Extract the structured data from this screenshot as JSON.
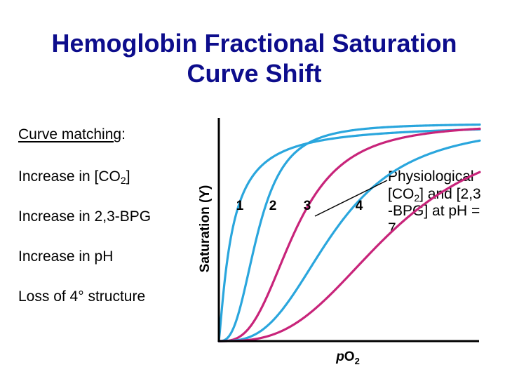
{
  "slide": {
    "title_line1": "Hemoglobin Fractional Saturation",
    "title_line2": "Curve Shift",
    "curve_matching_label": "Curve matching",
    "curve_matching_colon": ":",
    "items": [
      {
        "text": "Increase in [CO",
        "sub": "2",
        "after": "]"
      },
      {
        "text": "Increase in 2,3-BPG"
      },
      {
        "text": "Increase in pH"
      },
      {
        "text": "Loss of 4° structure"
      }
    ],
    "annotation": {
      "line1": "Physiological",
      "line2_pre": "[CO",
      "line2_sub": "2",
      "line2_post": "] and [2,3",
      "line3": "-BPG] at pH =",
      "line4": "7"
    }
  },
  "colors": {
    "title": "#0d0d8c",
    "blue_curve": "#2aa6dd",
    "magenta_curve": "#c8247a",
    "axis": "#000000"
  },
  "chart_data": {
    "type": "line",
    "title": "",
    "xlabel": "pO2",
    "ylabel": "Saturation (Y)",
    "ylim": [
      0,
      1
    ],
    "axis_ticks": "none",
    "grid": false,
    "curve_labels": [
      "1",
      "2",
      "3",
      "4"
    ],
    "series": [
      {
        "label": "1",
        "color": "#2aa6dd",
        "p50": 0.05,
        "hill": 1.2,
        "label_y": 0.6
      },
      {
        "label": "2",
        "color": "#2aa6dd",
        "p50": 0.15,
        "hill": 2.8,
        "label_y": 0.6
      },
      {
        "label": "3",
        "color": "#c8247a",
        "p50": 0.29,
        "hill": 3.0,
        "label_y": 0.6
      },
      {
        "label": "4",
        "color": "#2aa6dd",
        "p50": 0.44,
        "hill": 3.0,
        "label_y": 0.6
      },
      {
        "label": "",
        "color": "#c8247a",
        "p50": 0.66,
        "hill": 3.0
      }
    ]
  }
}
